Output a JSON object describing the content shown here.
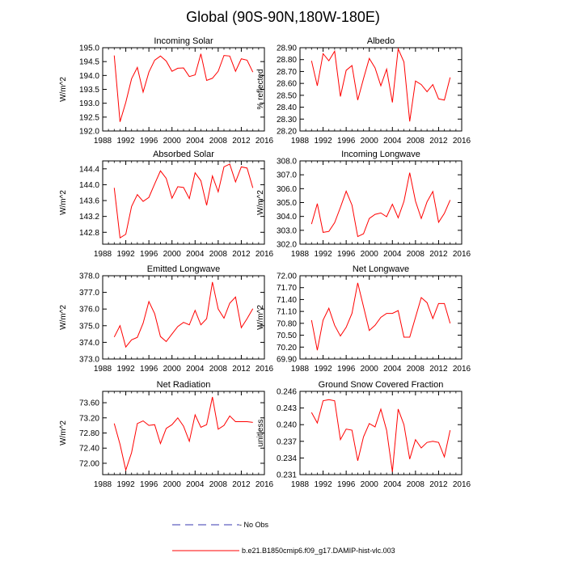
{
  "figure": {
    "title": "Global (90S-90N,180W-180E)",
    "legend": {
      "obs_label": "No Obs",
      "obs_color": "#3a3ab0",
      "model_label": "b.e21.B1850cmip6.f09_g17.DAMIP-hist-vlc.003",
      "model_color": "#ff0000"
    }
  },
  "chart_data": [
    {
      "type": "line",
      "title": "Incoming Solar",
      "xlabel": "",
      "ylabel": "W/m^2",
      "xlim": [
        1988,
        2016
      ],
      "xticks": [
        1988,
        1992,
        1996,
        2000,
        2004,
        2008,
        2012,
        2016
      ],
      "ylim": [
        192.0,
        195.0
      ],
      "yticks": [
        192.0,
        192.5,
        193.0,
        193.5,
        194.0,
        194.5,
        195.0
      ],
      "ytick_decimals": 1,
      "x": [
        1990,
        1991,
        1992,
        1993,
        1994,
        1995,
        1996,
        1997,
        1998,
        1999,
        2000,
        2001,
        2002,
        2003,
        2004,
        2005,
        2006,
        2007,
        2008,
        2009,
        2010,
        2011,
        2012,
        2013,
        2014
      ],
      "series": [
        {
          "name": "b.e21.B1850cmip6.f09_g17.DAMIP-hist-vlc.003",
          "values": [
            194.72,
            192.33,
            193.03,
            193.88,
            194.29,
            193.4,
            194.12,
            194.55,
            194.7,
            194.52,
            194.15,
            194.26,
            194.27,
            193.96,
            194.02,
            194.78,
            193.82,
            193.9,
            194.15,
            194.72,
            194.7,
            194.15,
            194.6,
            194.55,
            194.12
          ]
        }
      ]
    },
    {
      "type": "line",
      "title": "Albedo",
      "xlabel": "",
      "ylabel": "% reflected",
      "xlim": [
        1988,
        2016
      ],
      "xticks": [
        1988,
        1992,
        1996,
        2000,
        2004,
        2008,
        2012,
        2016
      ],
      "ylim": [
        28.2,
        28.9
      ],
      "yticks": [
        28.2,
        28.3,
        28.4,
        28.5,
        28.6,
        28.7,
        28.8,
        28.9
      ],
      "ytick_decimals": 2,
      "x": [
        1990,
        1991,
        1992,
        1993,
        1994,
        1995,
        1996,
        1997,
        1998,
        1999,
        2000,
        2001,
        2002,
        2003,
        2004,
        2005,
        2006,
        2007,
        2008,
        2009,
        2010,
        2011,
        2012,
        2013,
        2014
      ],
      "series": [
        {
          "name": "b.e21.B1850cmip6.f09_g17.DAMIP-hist-vlc.003",
          "values": [
            28.79,
            28.58,
            28.85,
            28.79,
            28.87,
            28.49,
            28.71,
            28.75,
            28.46,
            28.64,
            28.81,
            28.73,
            28.58,
            28.72,
            28.44,
            28.89,
            28.78,
            28.28,
            28.62,
            28.59,
            28.53,
            28.59,
            28.47,
            28.46,
            28.65
          ]
        }
      ]
    },
    {
      "type": "line",
      "title": "Absorbed Solar",
      "xlabel": "",
      "ylabel": "W/m^2",
      "xlim": [
        1988,
        2016
      ],
      "xticks": [
        1988,
        1992,
        1996,
        2000,
        2004,
        2008,
        2012,
        2016
      ],
      "ylim": [
        142.5,
        144.6
      ],
      "yticks": [
        142.8,
        143.2,
        143.6,
        144.0,
        144.4
      ],
      "ytick_decimals": 1,
      "x": [
        1990,
        1991,
        1992,
        1993,
        1994,
        1995,
        1996,
        1997,
        1998,
        1999,
        2000,
        2001,
        2002,
        2003,
        2004,
        2005,
        2006,
        2007,
        2008,
        2009,
        2010,
        2011,
        2012,
        2013,
        2014
      ],
      "series": [
        {
          "name": "b.e21.B1850cmip6.f09_g17.DAMIP-hist-vlc.003",
          "values": [
            143.92,
            142.66,
            142.75,
            143.45,
            143.75,
            143.58,
            143.68,
            144.02,
            144.35,
            144.16,
            143.66,
            143.95,
            143.93,
            143.65,
            144.3,
            144.1,
            143.48,
            144.22,
            143.82,
            144.45,
            144.52,
            144.07,
            144.45,
            144.42,
            143.92
          ]
        }
      ]
    },
    {
      "type": "line",
      "title": "Incoming Longwave",
      "xlabel": "",
      "ylabel": "W/m^2",
      "xlim": [
        1988,
        2016
      ],
      "xticks": [
        1988,
        1992,
        1996,
        2000,
        2004,
        2008,
        2012,
        2016
      ],
      "ylim": [
        302.0,
        308.0
      ],
      "yticks": [
        302.0,
        303.0,
        304.0,
        305.0,
        306.0,
        307.0,
        308.0
      ],
      "ytick_decimals": 1,
      "x": [
        1990,
        1991,
        1992,
        1993,
        1994,
        1995,
        1996,
        1997,
        1998,
        1999,
        2000,
        2001,
        2002,
        2003,
        2004,
        2005,
        2006,
        2007,
        2008,
        2009,
        2010,
        2011,
        2012,
        2013,
        2014
      ],
      "series": [
        {
          "name": "b.e21.B1850cmip6.f09_g17.DAMIP-hist-vlc.003",
          "values": [
            303.45,
            304.92,
            302.85,
            302.92,
            303.55,
            304.65,
            305.82,
            304.82,
            302.55,
            302.75,
            303.85,
            304.15,
            304.25,
            303.98,
            304.88,
            303.9,
            305.08,
            307.15,
            305.1,
            303.85,
            305.05,
            305.8,
            303.58,
            304.22,
            305.18
          ]
        }
      ]
    },
    {
      "type": "line",
      "title": "Emitted Longwave",
      "xlabel": "",
      "ylabel": "W/m^2",
      "xlim": [
        1988,
        2016
      ],
      "xticks": [
        1988,
        1992,
        1996,
        2000,
        2004,
        2008,
        2012,
        2016
      ],
      "ylim": [
        373.0,
        378.0
      ],
      "yticks": [
        373.0,
        374.0,
        375.0,
        376.0,
        377.0,
        378.0
      ],
      "ytick_decimals": 1,
      "x": [
        1990,
        1991,
        1992,
        1993,
        1994,
        1995,
        1996,
        1997,
        1998,
        1999,
        2000,
        2001,
        2002,
        2003,
        2004,
        2005,
        2006,
        2007,
        2008,
        2009,
        2010,
        2011,
        2012,
        2013,
        2014
      ],
      "series": [
        {
          "name": "b.e21.B1850cmip6.f09_g17.DAMIP-hist-vlc.003",
          "values": [
            374.32,
            375.0,
            373.72,
            374.15,
            374.3,
            375.15,
            376.45,
            375.72,
            374.35,
            374.05,
            374.5,
            374.95,
            375.2,
            375.05,
            375.92,
            375.05,
            375.42,
            377.62,
            376.0,
            375.45,
            376.35,
            376.72,
            374.88,
            375.42,
            376.02
          ]
        }
      ]
    },
    {
      "type": "line",
      "title": "Net Longwave",
      "xlabel": "",
      "ylabel": "W/m^2",
      "xlim": [
        1988,
        2016
      ],
      "xticks": [
        1988,
        1992,
        1996,
        2000,
        2004,
        2008,
        2012,
        2016
      ],
      "ylim": [
        69.9,
        72.0
      ],
      "yticks": [
        69.9,
        70.2,
        70.5,
        70.8,
        71.1,
        71.4,
        71.7,
        72.0
      ],
      "ytick_decimals": 2,
      "x": [
        1990,
        1991,
        1992,
        1993,
        1994,
        1995,
        1996,
        1997,
        1998,
        1999,
        2000,
        2001,
        2002,
        2003,
        2004,
        2005,
        2006,
        2007,
        2008,
        2009,
        2010,
        2011,
        2012,
        2013,
        2014
      ],
      "series": [
        {
          "name": "b.e21.B1850cmip6.f09_g17.DAMIP-hist-vlc.003",
          "values": [
            70.88,
            70.12,
            70.88,
            71.18,
            70.75,
            70.48,
            70.7,
            71.05,
            71.82,
            71.22,
            70.62,
            70.75,
            70.95,
            71.05,
            71.05,
            71.12,
            70.45,
            70.45,
            70.95,
            71.45,
            71.32,
            70.92,
            71.3,
            71.3,
            70.8
          ]
        }
      ]
    },
    {
      "type": "line",
      "title": "Net Radiation",
      "xlabel": "",
      "ylabel": "W/m^2",
      "xlim": [
        1988,
        2016
      ],
      "xticks": [
        1988,
        1992,
        1996,
        2000,
        2004,
        2008,
        2012,
        2016
      ],
      "ylim": [
        71.7,
        73.9
      ],
      "yticks": [
        72.0,
        72.4,
        72.8,
        73.2,
        73.6
      ],
      "ytick_decimals": 2,
      "x": [
        1990,
        1991,
        1992,
        1993,
        1994,
        1995,
        1996,
        1997,
        1998,
        1999,
        2000,
        2001,
        2002,
        2003,
        2004,
        2005,
        2006,
        2007,
        2008,
        2009,
        2010,
        2011,
        2012,
        2013,
        2014
      ],
      "series": [
        {
          "name": "b.e21.B1850cmip6.f09_g17.DAMIP-hist-vlc.003",
          "values": [
            73.05,
            72.5,
            71.82,
            72.28,
            73.05,
            73.12,
            73.0,
            73.02,
            72.52,
            72.92,
            73.02,
            73.2,
            72.98,
            72.58,
            73.28,
            72.95,
            73.02,
            73.75,
            72.9,
            73.0,
            73.25,
            73.1,
            73.1,
            73.1,
            73.08
          ]
        }
      ]
    },
    {
      "type": "line",
      "title": "Ground Snow Covered Fraction",
      "xlabel": "",
      "ylabel": "unitless",
      "xlim": [
        1988,
        2016
      ],
      "xticks": [
        1988,
        1992,
        1996,
        2000,
        2004,
        2008,
        2012,
        2016
      ],
      "ylim": [
        0.231,
        0.246
      ],
      "yticks": [
        0.231,
        0.234,
        0.237,
        0.24,
        0.243,
        0.246
      ],
      "ytick_decimals": 3,
      "x": [
        1990,
        1991,
        1992,
        1993,
        1994,
        1995,
        1996,
        1997,
        1998,
        1999,
        2000,
        2001,
        2002,
        2003,
        2004,
        2005,
        2006,
        2007,
        2008,
        2009,
        2010,
        2011,
        2012,
        2013,
        2014
      ],
      "series": [
        {
          "name": "b.e21.B1850cmip6.f09_g17.DAMIP-hist-vlc.003",
          "values": [
            0.2422,
            0.2403,
            0.2443,
            0.2445,
            0.2443,
            0.2373,
            0.2392,
            0.239,
            0.2335,
            0.2378,
            0.2402,
            0.2396,
            0.2428,
            0.239,
            0.2315,
            0.2428,
            0.24,
            0.2338,
            0.2373,
            0.2358,
            0.2368,
            0.237,
            0.2368,
            0.2342,
            0.239
          ]
        }
      ]
    }
  ]
}
